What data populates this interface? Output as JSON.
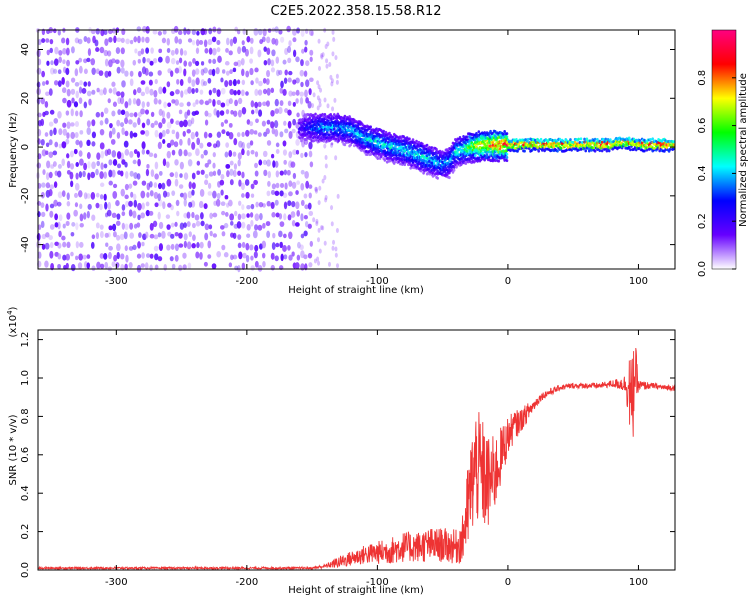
{
  "title": "C2E5.2022.358.15.58.R12",
  "chart_data": [
    {
      "type": "heatmap",
      "xlabel": "Height of straight line (km)",
      "ylabel": "Frequency (Hz)",
      "xlim": [
        -360,
        128
      ],
      "ylim": [
        -50,
        48
      ],
      "xticks": [
        -300,
        -200,
        -100,
        0,
        100
      ],
      "yticks": [
        -40,
        -20,
        0,
        20,
        40
      ],
      "colorbar": {
        "label": "Normalized spectral amplitude",
        "range": [
          0,
          1
        ],
        "ticks": [
          "0.0",
          "0.2",
          "0.4",
          "0.6",
          "0.8"
        ],
        "colormap": [
          "#ffffff",
          "#6600ff",
          "#0000ff",
          "#00ffff",
          "#00ff00",
          "#ffff00",
          "#ff0000",
          "#ff0080"
        ]
      },
      "noise_region": {
        "x_range": [
          -360,
          -150
        ],
        "freq_range": [
          -50,
          48
        ],
        "amplitude": 0.15
      },
      "signal_trace": {
        "x": [
          -160,
          -150,
          -140,
          -130,
          -120,
          -110,
          -100,
          -90,
          -80,
          -70,
          -60,
          -50,
          -45,
          -40,
          -30,
          -20,
          -10,
          0,
          20,
          40,
          60,
          80,
          90,
          100,
          110,
          128
        ],
        "freq": [
          8,
          8,
          8,
          8,
          7,
          4,
          2,
          0,
          -1,
          -3,
          -5,
          -7,
          -6,
          -2,
          0,
          1,
          1,
          1,
          1,
          1,
          1,
          1,
          2,
          1,
          1,
          1
        ],
        "amplitude": [
          0.2,
          0.35,
          0.4,
          0.4,
          0.4,
          0.45,
          0.45,
          0.45,
          0.45,
          0.45,
          0.45,
          0.4,
          0.4,
          0.45,
          0.6,
          0.8,
          0.85,
          0.9,
          0.95,
          0.95,
          0.95,
          0.95,
          0.9,
          0.9,
          0.95,
          0.95
        ]
      }
    },
    {
      "type": "line",
      "xlabel": "Height of straight line (km)",
      "ylabel": "SNR (10 * v/v)",
      "yscale_label": "(x10",
      "yscale_exp": "4",
      "xlim": [
        -360,
        128
      ],
      "ylim": [
        0,
        1.25
      ],
      "xticks": [
        -300,
        -200,
        -100,
        0,
        100
      ],
      "yticks": [
        "0.0",
        "0.2",
        "0.4",
        "0.6",
        "0.8",
        "1.0",
        "1.2"
      ],
      "line_color": "#ee3333",
      "series": [
        {
          "x": [
            -360,
            -300,
            -250,
            -200,
            -150,
            -140,
            -130,
            -120,
            -110,
            -100,
            -90,
            -80,
            -70,
            -60,
            -50,
            -40,
            -35,
            -30,
            -25,
            -20,
            -15,
            -10,
            -5,
            0,
            5,
            10,
            15,
            20,
            25,
            30,
            40,
            50,
            60,
            70,
            80,
            85,
            90,
            93,
            95,
            97,
            100,
            110,
            120,
            128
          ],
          "y": [
            0.01,
            0.01,
            0.01,
            0.01,
            0.01,
            0.02,
            0.04,
            0.06,
            0.08,
            0.09,
            0.1,
            0.12,
            0.12,
            0.13,
            0.13,
            0.12,
            0.15,
            0.35,
            0.55,
            0.5,
            0.45,
            0.5,
            0.6,
            0.7,
            0.75,
            0.78,
            0.82,
            0.86,
            0.9,
            0.92,
            0.95,
            0.96,
            0.96,
            0.96,
            0.97,
            0.97,
            0.97,
            0.95,
            0.8,
            1.05,
            0.96,
            0.96,
            0.95,
            0.95
          ],
          "spread": [
            0.005,
            0.005,
            0.005,
            0.005,
            0.005,
            0.01,
            0.03,
            0.04,
            0.05,
            0.06,
            0.07,
            0.08,
            0.08,
            0.09,
            0.09,
            0.09,
            0.12,
            0.25,
            0.3,
            0.3,
            0.25,
            0.2,
            0.15,
            0.1,
            0.08,
            0.06,
            0.05,
            0.03,
            0.02,
            0.02,
            0.015,
            0.015,
            0.015,
            0.015,
            0.02,
            0.03,
            0.05,
            0.2,
            0.3,
            0.2,
            0.03,
            0.015,
            0.015,
            0.015
          ]
        }
      ]
    }
  ]
}
